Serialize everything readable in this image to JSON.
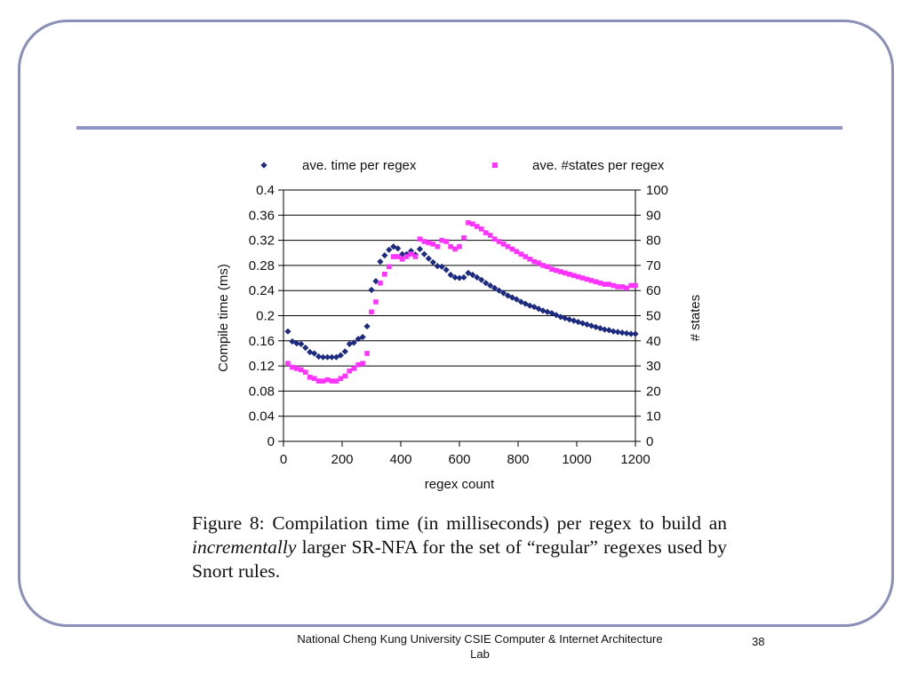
{
  "slide": {
    "footer": "National Cheng Kung University CSIE Computer & Internet Architecture Lab",
    "page_number": "38"
  },
  "caption": {
    "part1": "Figure 8: Compilation time (in milliseconds) per regex to build an ",
    "italic": "incrementally",
    "part2": " larger SR-NFA for the set of “regular” regexes used by Snort rules."
  },
  "colors": {
    "series1": "#1c2a80",
    "series2": "#ff33ff",
    "frame": "#8a8fb8",
    "rule": "#8f98c4"
  },
  "chart_data": {
    "type": "scatter",
    "xlabel": "regex count",
    "ylabel": "Compile time (ms)",
    "y2label": "# states",
    "xlim": [
      0,
      1200
    ],
    "xticks": [
      "0",
      "200",
      "400",
      "600",
      "800",
      "1000",
      "1200"
    ],
    "ylim": [
      0,
      0.4
    ],
    "yticks": [
      "0",
      "0.04",
      "0.08",
      "0.12",
      "0.16",
      "0.2",
      "0.24",
      "0.28",
      "0.32",
      "0.36",
      "0.4"
    ],
    "y2lim": [
      0,
      100
    ],
    "y2ticks": [
      "0",
      "10",
      "20",
      "30",
      "40",
      "50",
      "60",
      "70",
      "80",
      "90",
      "100"
    ],
    "grid": "horizontal",
    "legend": "top",
    "series": [
      {
        "name": "ave. time per regex",
        "axis": "left",
        "marker": "diamond",
        "x": [
          15,
          30,
          45,
          60,
          75,
          90,
          105,
          120,
          135,
          150,
          165,
          180,
          195,
          210,
          225,
          240,
          255,
          270,
          285,
          300,
          315,
          330,
          345,
          360,
          375,
          390,
          405,
          420,
          435,
          450,
          465,
          480,
          495,
          510,
          525,
          540,
          555,
          570,
          585,
          600,
          615,
          630,
          645,
          660,
          675,
          690,
          705,
          720,
          735,
          750,
          765,
          780,
          795,
          810,
          825,
          840,
          855,
          870,
          885,
          900,
          915,
          930,
          945,
          960,
          975,
          990,
          1005,
          1020,
          1035,
          1050,
          1065,
          1080,
          1095,
          1110,
          1125,
          1140,
          1155,
          1170,
          1185,
          1200
        ],
        "y": [
          0.175,
          0.159,
          0.156,
          0.155,
          0.149,
          0.142,
          0.14,
          0.135,
          0.134,
          0.134,
          0.134,
          0.134,
          0.137,
          0.143,
          0.155,
          0.157,
          0.163,
          0.166,
          0.183,
          0.241,
          0.255,
          0.286,
          0.296,
          0.305,
          0.31,
          0.307,
          0.298,
          0.298,
          0.303,
          0.297,
          0.306,
          0.298,
          0.291,
          0.285,
          0.279,
          0.278,
          0.273,
          0.265,
          0.261,
          0.26,
          0.261,
          0.268,
          0.265,
          0.261,
          0.257,
          0.252,
          0.248,
          0.244,
          0.24,
          0.236,
          0.232,
          0.229,
          0.226,
          0.222,
          0.219,
          0.216,
          0.214,
          0.211,
          0.208,
          0.206,
          0.204,
          0.201,
          0.198,
          0.196,
          0.194,
          0.192,
          0.19,
          0.188,
          0.186,
          0.184,
          0.182,
          0.18,
          0.178,
          0.177,
          0.175,
          0.174,
          0.173,
          0.172,
          0.171,
          0.171
        ]
      },
      {
        "name": "ave. #states per regex",
        "axis": "right",
        "marker": "square",
        "x": [
          15,
          30,
          45,
          60,
          75,
          90,
          105,
          120,
          135,
          150,
          165,
          180,
          195,
          210,
          225,
          240,
          255,
          270,
          285,
          300,
          315,
          330,
          345,
          360,
          375,
          390,
          405,
          420,
          435,
          450,
          465,
          480,
          495,
          510,
          525,
          540,
          555,
          570,
          585,
          600,
          615,
          630,
          645,
          660,
          675,
          690,
          705,
          720,
          735,
          750,
          765,
          780,
          795,
          810,
          825,
          840,
          855,
          870,
          885,
          900,
          915,
          930,
          945,
          960,
          975,
          990,
          1005,
          1020,
          1035,
          1050,
          1065,
          1080,
          1095,
          1110,
          1125,
          1140,
          1155,
          1170,
          1185,
          1200
        ],
        "y": [
          31,
          29.5,
          29,
          28.5,
          27.5,
          25.5,
          25,
          24,
          24,
          24.5,
          24,
          24,
          25,
          26,
          28,
          29,
          30.5,
          31,
          35,
          51.5,
          55.5,
          63,
          66.5,
          69.5,
          73.5,
          73.5,
          72.5,
          73.5,
          74.5,
          73.5,
          80.5,
          79.5,
          79,
          78.5,
          77.5,
          80,
          79.5,
          77.5,
          76.5,
          77.5,
          81,
          87,
          86.5,
          85.5,
          84.5,
          83,
          82,
          80.5,
          79.5,
          78.5,
          77.5,
          76.5,
          75.5,
          74.5,
          73.5,
          72.5,
          71.5,
          71,
          70,
          69.5,
          68.5,
          68,
          67.5,
          67,
          66.5,
          66,
          65.5,
          65,
          64.5,
          64,
          63.5,
          63,
          62.5,
          62.5,
          62,
          61.5,
          61.5,
          61,
          62,
          62
        ]
      }
    ]
  }
}
